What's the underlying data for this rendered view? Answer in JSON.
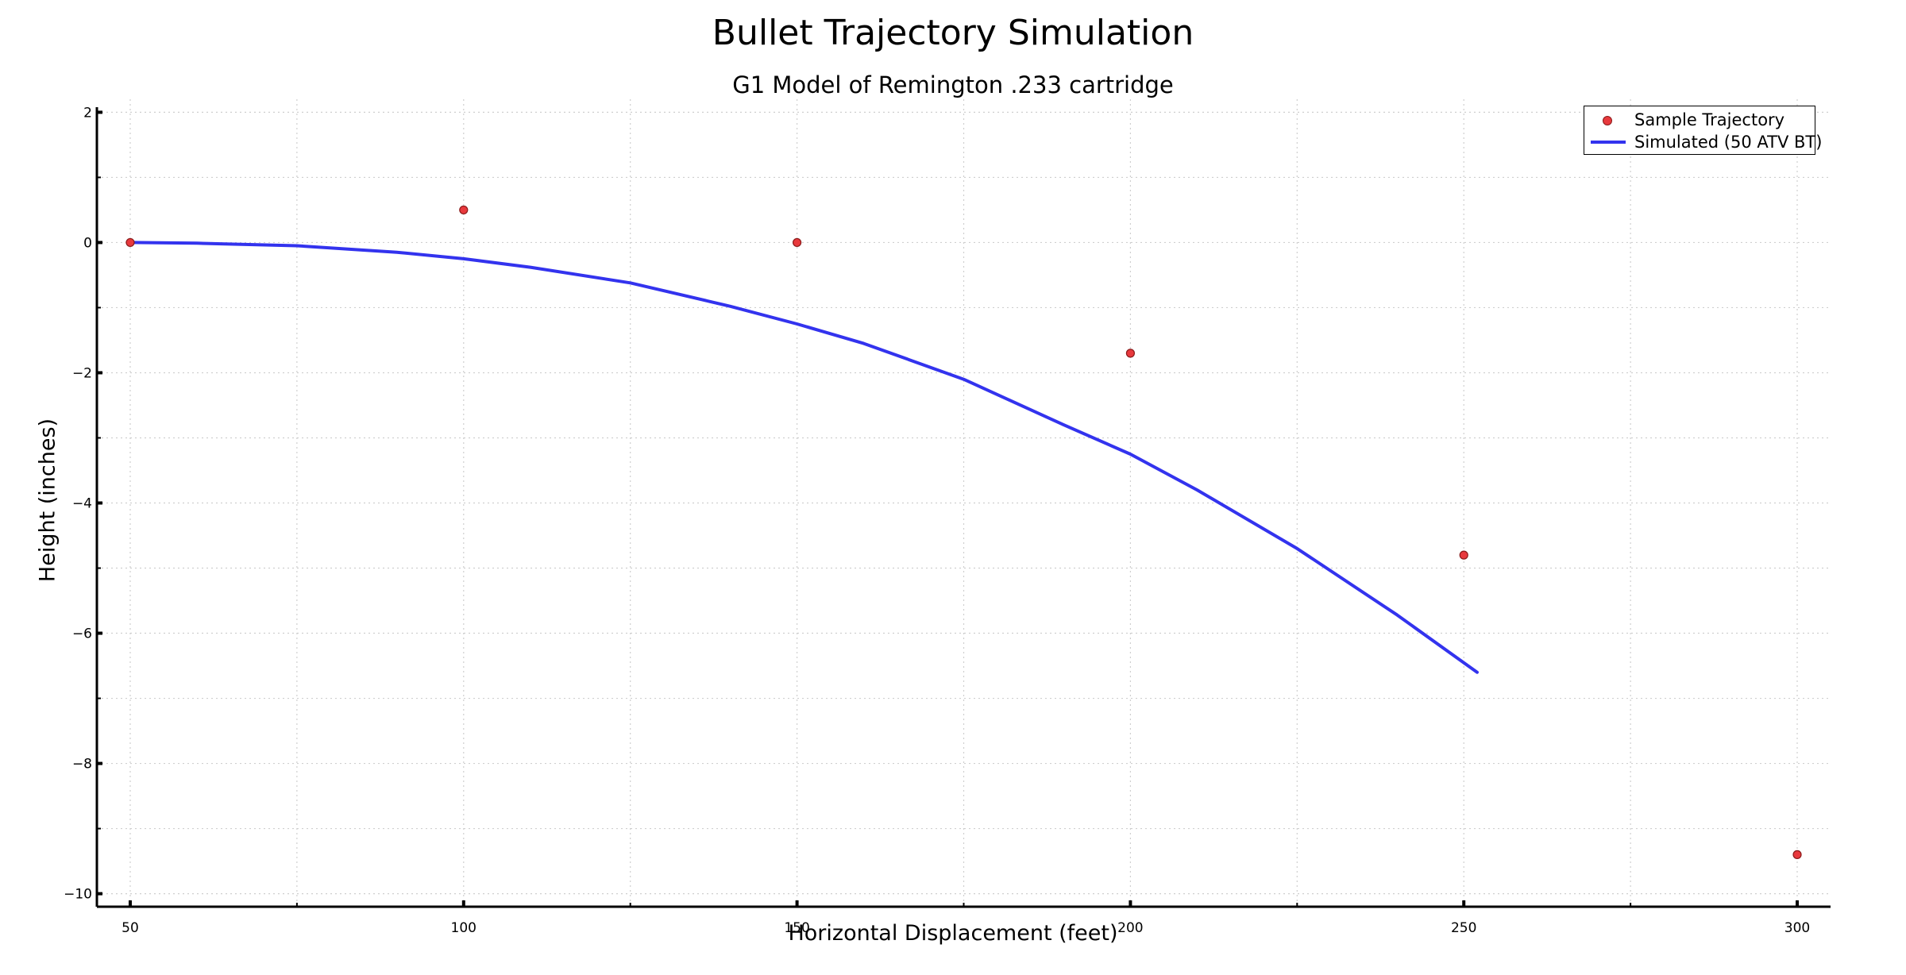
{
  "chart_data": {
    "type": "scatter",
    "title": "Bullet Trajectory Simulation",
    "subtitle": "G1 Model of Remington .233 cartridge",
    "xlabel": "Horizontal Displacement (feet)",
    "ylabel": "Height (inches)",
    "xlim": [
      45,
      305
    ],
    "ylim": [
      -10.2,
      2.2
    ],
    "xticks": [
      50,
      100,
      150,
      200,
      250,
      300
    ],
    "xtick_labels": [
      "50",
      "100",
      "150",
      "200",
      "250",
      "300"
    ],
    "yticks": [
      2,
      0,
      -2,
      -4,
      -6,
      -8,
      -10
    ],
    "ytick_labels": [
      "2",
      "0",
      "−2",
      "−4",
      "−6",
      "−8",
      "−10"
    ],
    "grid": true,
    "legend_position": "top-right",
    "series": [
      {
        "name": "Sample Trajectory",
        "kind": "scatter",
        "color": "#e8393d",
        "x": [
          50,
          100,
          150,
          200,
          250,
          300
        ],
        "y": [
          0.0,
          0.5,
          0.0,
          -1.7,
          -4.8,
          -9.4
        ]
      },
      {
        "name": "Simulated (50 ATV BT)",
        "kind": "line",
        "color": "#3333ee",
        "x": [
          50,
          60,
          75,
          90,
          100,
          110,
          125,
          140,
          150,
          160,
          175,
          190,
          200,
          210,
          225,
          240,
          252
        ],
        "y": [
          0.0,
          -0.01,
          -0.05,
          -0.15,
          -0.25,
          -0.38,
          -0.62,
          -0.98,
          -1.25,
          -1.55,
          -2.1,
          -2.8,
          -3.25,
          -3.8,
          -4.7,
          -5.72,
          -6.6
        ]
      }
    ]
  }
}
